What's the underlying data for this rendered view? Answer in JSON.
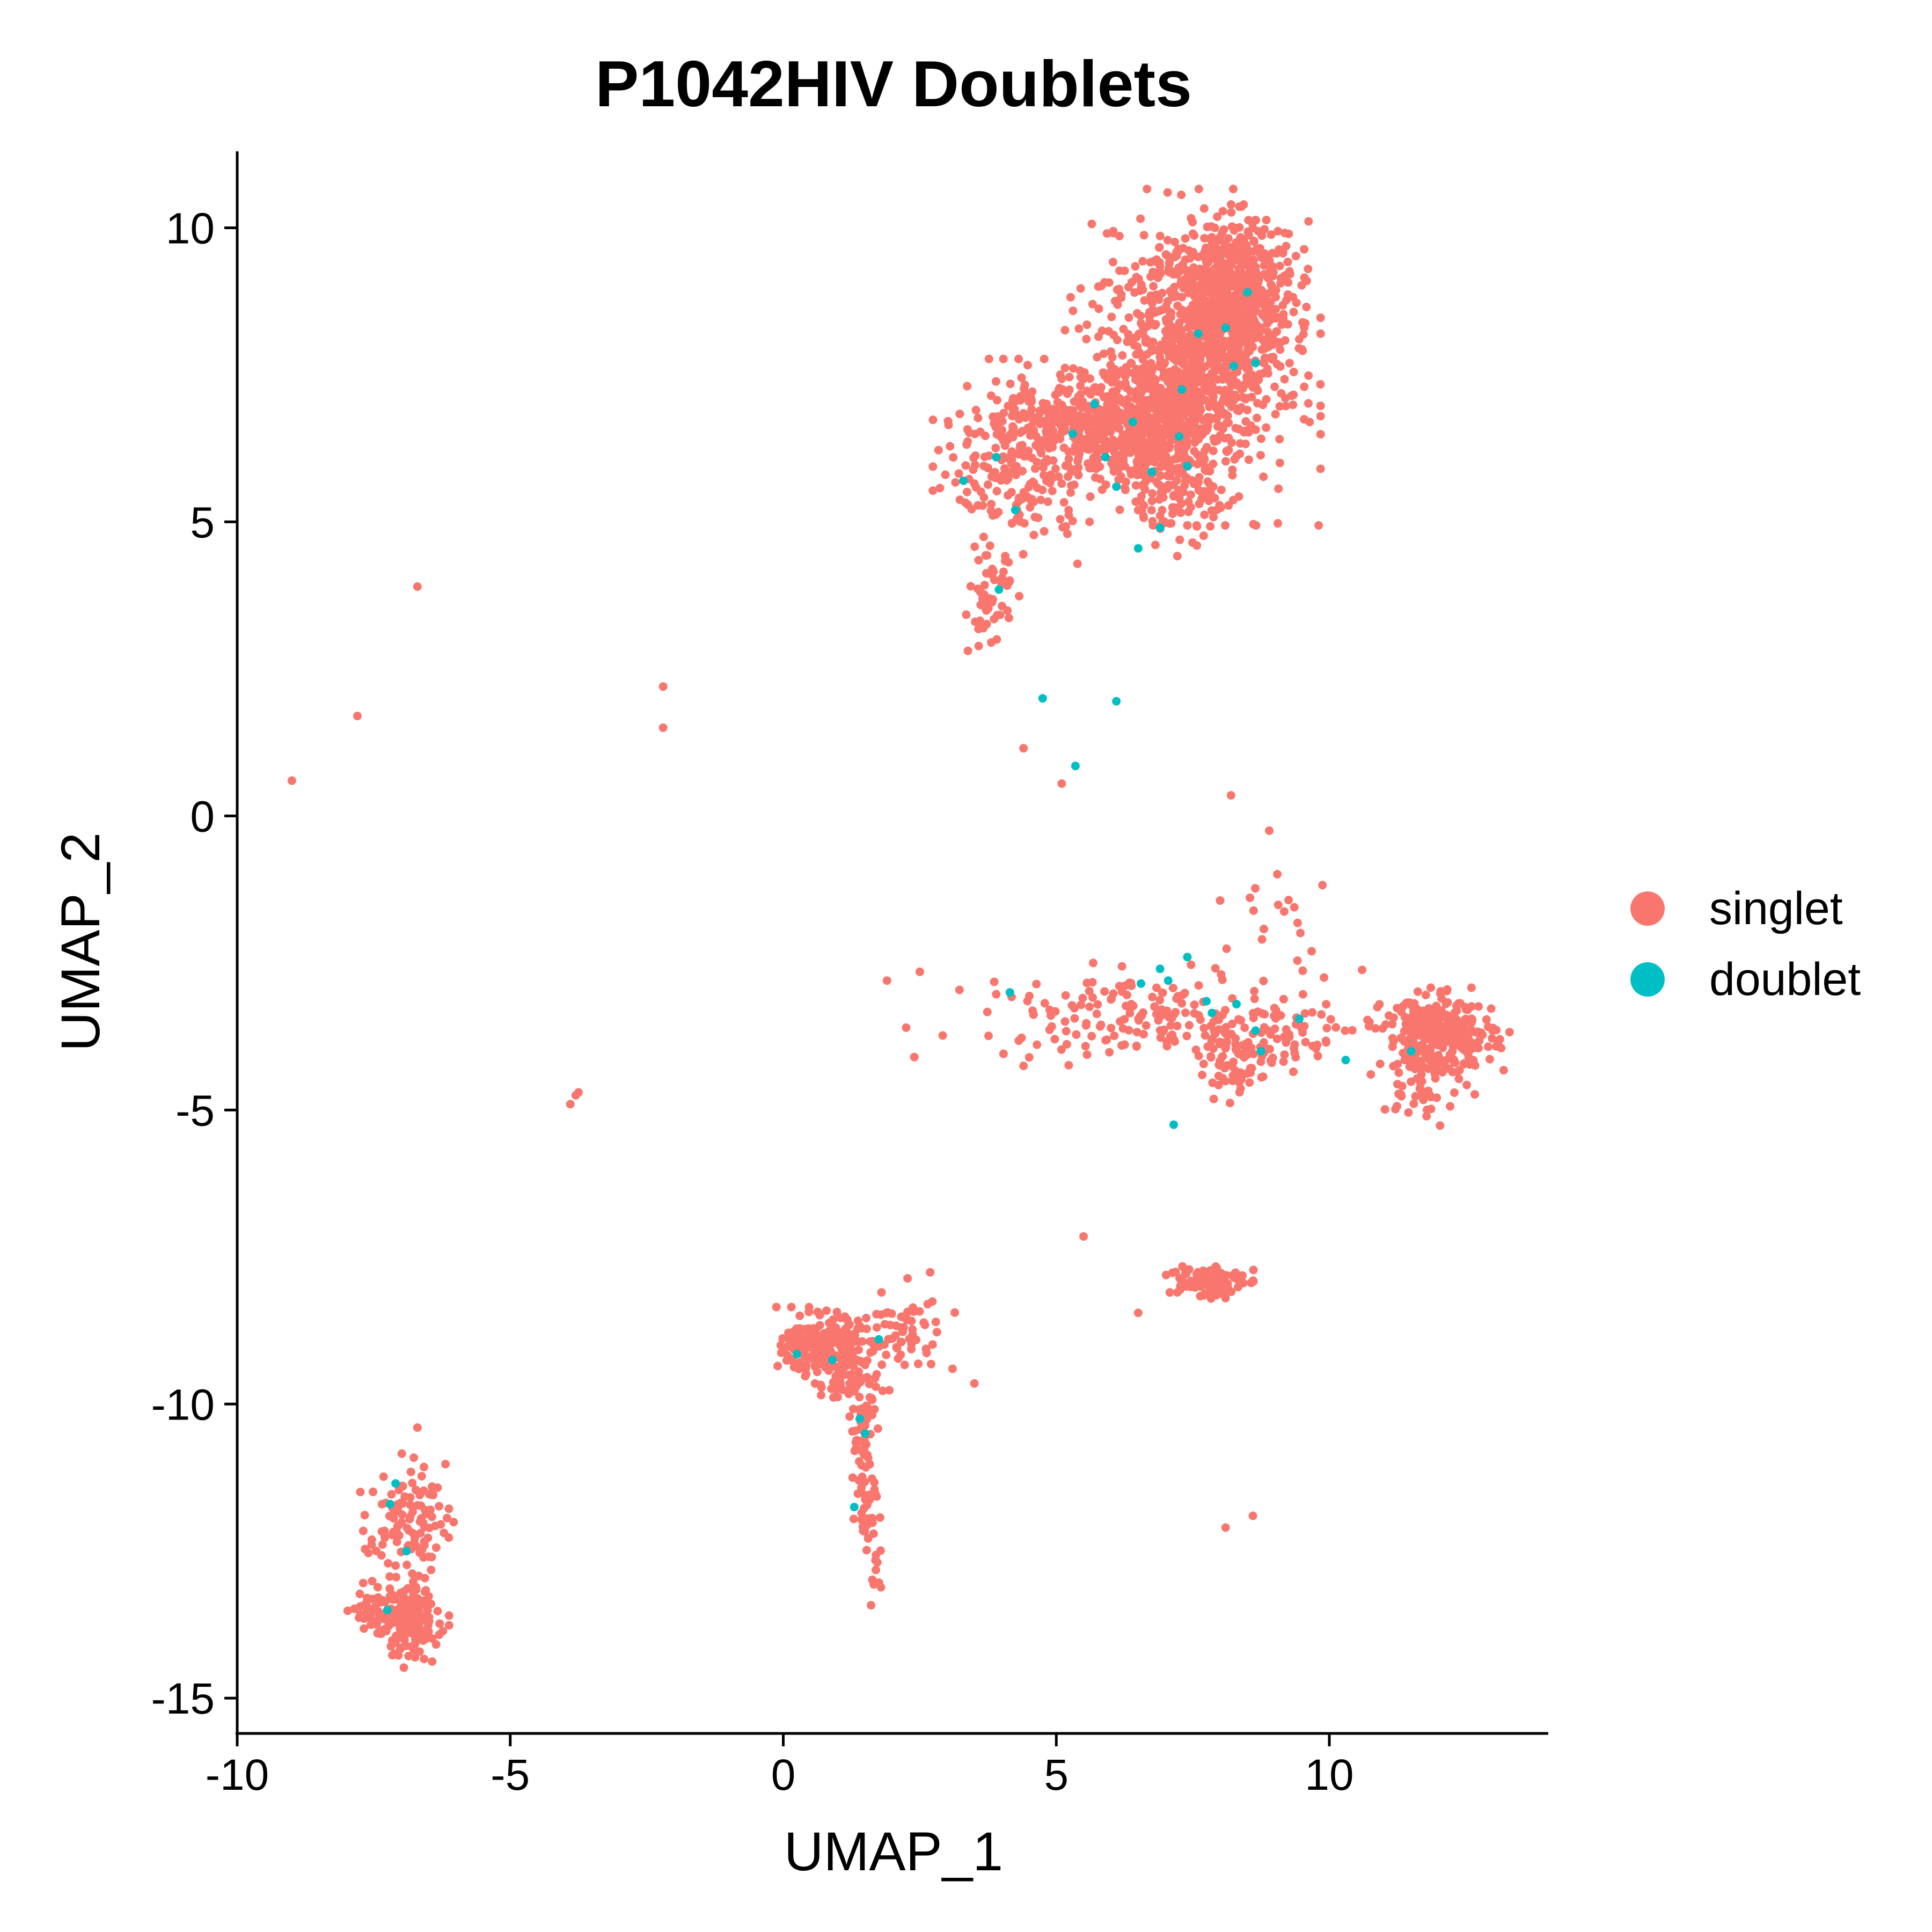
{
  "chart_data": {
    "type": "scatter",
    "title": "P1042HIV Doublets",
    "xlabel": "UMAP_1",
    "ylabel": "UMAP_2",
    "xlim": [
      -10,
      14
    ],
    "ylim": [
      -15.6,
      11.3
    ],
    "x_ticks": [
      -10,
      -5,
      0,
      5,
      10
    ],
    "x_tick_labels": [
      "-10",
      "-5",
      "0",
      "5",
      "10"
    ],
    "y_ticks": [
      -15,
      -10,
      -5,
      0,
      5,
      10
    ],
    "y_tick_labels": [
      "-15",
      "-10",
      "-5",
      "0",
      "5",
      "10"
    ],
    "grid": false,
    "legend_position": "right",
    "series": [
      {
        "name": "singlet",
        "color": "#F8766D",
        "clusters": [
          {
            "cx": 7.5,
            "cy": 7.8,
            "sx": 0.9,
            "sy": 1.1,
            "n": 950
          },
          {
            "cx": 8.3,
            "cy": 8.8,
            "sx": 0.5,
            "sy": 0.6,
            "n": 500
          },
          {
            "cx": 5.4,
            "cy": 6.6,
            "sx": 1.1,
            "sy": 0.45,
            "n": 450
          },
          {
            "cx": 6.7,
            "cy": 6.5,
            "sx": 0.6,
            "sy": 0.5,
            "n": 250
          },
          {
            "cx": 4.3,
            "cy": 5.5,
            "sx": 0.6,
            "sy": 0.5,
            "n": 120
          },
          {
            "cx": 7.2,
            "cy": 5.4,
            "sx": 0.4,
            "sy": 0.4,
            "n": 60
          },
          {
            "cx": 3.8,
            "cy": 3.6,
            "sx": 0.2,
            "sy": 0.4,
            "n": 55
          },
          {
            "cx": 12.0,
            "cy": -3.7,
            "sx": 0.5,
            "sy": 0.3,
            "n": 320
          },
          {
            "cx": 11.8,
            "cy": -4.5,
            "sx": 0.4,
            "sy": 0.4,
            "n": 50
          },
          {
            "cx": 8.3,
            "cy": -4.1,
            "sx": 0.35,
            "sy": 0.3,
            "n": 90
          },
          {
            "cx": 6.3,
            "cy": -3.4,
            "sx": 1.3,
            "sy": 0.35,
            "n": 150
          },
          {
            "cx": 9.3,
            "cy": -3.7,
            "sx": 0.6,
            "sy": 0.25,
            "n": 50
          },
          {
            "cx": 9.3,
            "cy": -1.8,
            "sx": 0.5,
            "sy": 0.7,
            "n": 25
          },
          {
            "cx": 7.7,
            "cy": -7.9,
            "sx": 0.35,
            "sy": 0.15,
            "n": 110
          },
          {
            "cx": 0.7,
            "cy": -9.0,
            "sx": 0.35,
            "sy": 0.25,
            "n": 210
          },
          {
            "cx": 2.1,
            "cy": -8.8,
            "sx": 0.4,
            "sy": 0.4,
            "n": 70
          },
          {
            "cx": 1.2,
            "cy": -9.6,
            "sx": 0.3,
            "sy": 0.3,
            "n": 60
          },
          {
            "cx": 1.45,
            "cy": -10.6,
            "sx": 0.12,
            "sy": 0.4,
            "n": 40
          },
          {
            "cx": 1.55,
            "cy": -11.7,
            "sx": 0.1,
            "sy": 0.35,
            "n": 40
          },
          {
            "cx": 1.7,
            "cy": -12.9,
            "sx": 0.07,
            "sy": 0.2,
            "n": 8
          },
          {
            "cx": -6.9,
            "cy": -13.7,
            "sx": 0.3,
            "sy": 0.3,
            "n": 180
          },
          {
            "cx": -6.9,
            "cy": -12.0,
            "sx": 0.35,
            "sy": 0.45,
            "n": 110
          },
          {
            "cx": -7.4,
            "cy": -13.5,
            "sx": 0.25,
            "sy": 0.2,
            "n": 40
          }
        ],
        "points": [
          [
            -9.0,
            0.6
          ],
          [
            -7.8,
            1.7
          ],
          [
            -6.7,
            3.9
          ],
          [
            -2.2,
            2.2
          ],
          [
            -2.2,
            1.5
          ],
          [
            -3.9,
            -4.9
          ],
          [
            -3.8,
            -4.75
          ],
          [
            -3.75,
            -4.7
          ],
          [
            4.4,
            1.15
          ],
          [
            5.1,
            0.55
          ],
          [
            1.9,
            -2.8
          ],
          [
            2.5,
            -2.65
          ],
          [
            2.25,
            -3.6
          ],
          [
            2.4,
            -4.1
          ],
          [
            4.4,
            -4.25
          ],
          [
            5.5,
            -7.15
          ],
          [
            6.5,
            -8.45
          ],
          [
            8.1,
            -12.1
          ],
          [
            8.6,
            -11.9
          ],
          [
            8.2,
            0.35
          ],
          [
            8.9,
            -0.25
          ],
          [
            3.1,
            -9.4
          ],
          [
            3.5,
            -9.65
          ],
          [
            -6.7,
            -10.4
          ]
        ]
      },
      {
        "name": "doublet",
        "color": "#00BFC4",
        "points": [
          [
            3.3,
            5.7
          ],
          [
            3.9,
            6.1
          ],
          [
            4.25,
            5.2
          ],
          [
            3.95,
            3.85
          ],
          [
            5.3,
            6.5
          ],
          [
            5.7,
            7.0
          ],
          [
            5.9,
            6.1
          ],
          [
            6.1,
            5.6
          ],
          [
            6.4,
            6.7
          ],
          [
            6.75,
            5.85
          ],
          [
            6.9,
            4.9
          ],
          [
            6.5,
            4.55
          ],
          [
            7.25,
            6.45
          ],
          [
            7.4,
            5.95
          ],
          [
            7.6,
            8.2
          ],
          [
            8.1,
            8.3
          ],
          [
            8.25,
            7.65
          ],
          [
            8.5,
            8.9
          ],
          [
            8.65,
            7.7
          ],
          [
            7.3,
            7.25
          ],
          [
            4.75,
            2.0
          ],
          [
            5.35,
            0.85
          ],
          [
            6.1,
            1.95
          ],
          [
            4.15,
            -3.0
          ],
          [
            6.55,
            -2.85
          ],
          [
            6.9,
            -2.6
          ],
          [
            7.05,
            -2.8
          ],
          [
            7.4,
            -2.4
          ],
          [
            7.85,
            -3.35
          ],
          [
            7.75,
            -3.15
          ],
          [
            8.3,
            -3.2
          ],
          [
            8.65,
            -3.65
          ],
          [
            8.75,
            -4.0
          ],
          [
            9.45,
            -3.45
          ],
          [
            10.3,
            -4.15
          ],
          [
            11.5,
            -4.0
          ],
          [
            7.15,
            -5.25
          ],
          [
            0.25,
            -9.15
          ],
          [
            0.9,
            -9.25
          ],
          [
            1.75,
            -8.9
          ],
          [
            1.4,
            -10.25
          ],
          [
            1.5,
            -10.5
          ],
          [
            1.3,
            -11.75
          ],
          [
            -7.1,
            -11.35
          ],
          [
            -7.2,
            -11.7
          ],
          [
            -6.9,
            -12.5
          ],
          [
            -7.25,
            -13.5
          ]
        ]
      }
    ]
  }
}
